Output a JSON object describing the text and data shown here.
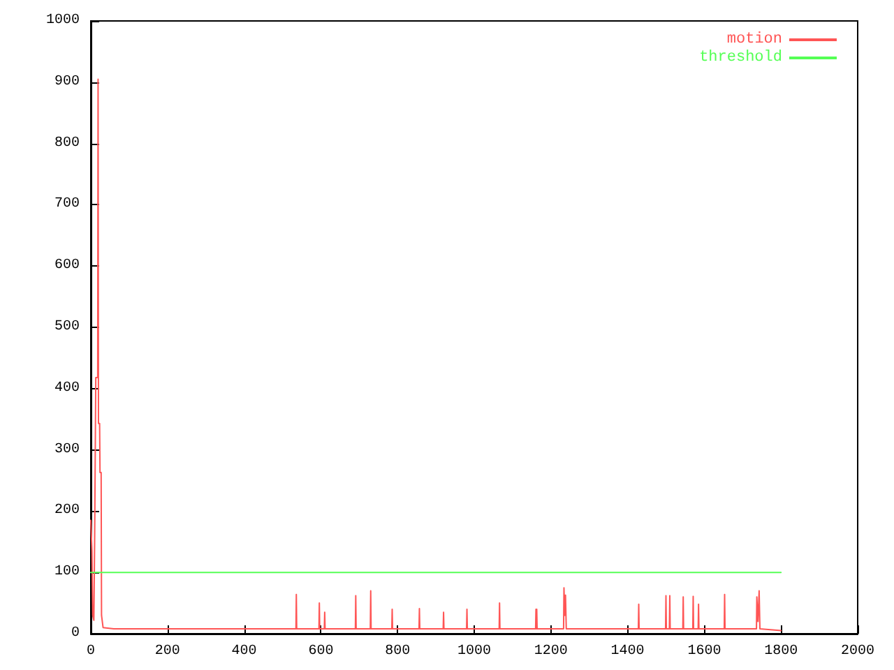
{
  "chart_data": {
    "type": "line",
    "xlim": [
      0,
      2000
    ],
    "xticks": [
      0,
      200,
      400,
      600,
      800,
      1000,
      1200,
      1400,
      1600,
      1800,
      2000
    ],
    "ylim": [
      0,
      1000
    ],
    "yticks": [
      0,
      100,
      200,
      300,
      400,
      500,
      600,
      700,
      800,
      900,
      1000
    ],
    "grid": false,
    "legend": "top right",
    "marker": "none",
    "line_style": "solid",
    "series": [
      {
        "name": "motion",
        "color": "#ff5555",
        "x": [
          0,
          3,
          5,
          8,
          10,
          13,
          18,
          19,
          20,
          23,
          24,
          27,
          28,
          32,
          60,
          100,
          200,
          300,
          400,
          500,
          535,
          536,
          537,
          595,
          596,
          597,
          609,
          610,
          611,
          690,
          691,
          692,
          729,
          730,
          731,
          785,
          786,
          787,
          856,
          857,
          858,
          919,
          920,
          921,
          980,
          981,
          982,
          1065,
          1066,
          1067,
          1160,
          1161,
          1162,
          1163,
          1164,
          1233,
          1234,
          1236,
          1238,
          1240,
          1428,
          1429,
          1430,
          1499,
          1500,
          1501,
          1509,
          1510,
          1511,
          1544,
          1545,
          1546,
          1570,
          1571,
          1572,
          1584,
          1585,
          1586,
          1652,
          1653,
          1654,
          1736,
          1737,
          1740,
          1743,
          1745,
          1800
        ],
        "values": [
          185,
          135,
          30,
          22,
          150,
          418,
          418,
          905,
          343,
          343,
          263,
          263,
          30,
          10,
          8,
          8,
          8,
          8,
          8,
          8,
          8,
          64,
          8,
          8,
          50,
          8,
          8,
          35,
          8,
          8,
          62,
          8,
          8,
          70,
          8,
          8,
          40,
          8,
          8,
          41,
          8,
          8,
          35,
          8,
          8,
          40,
          8,
          8,
          50,
          8,
          8,
          40,
          8,
          40,
          8,
          8,
          75,
          30,
          63,
          8,
          8,
          48,
          8,
          8,
          62,
          8,
          8,
          62,
          8,
          8,
          60,
          8,
          8,
          61,
          8,
          8,
          48,
          8,
          8,
          64,
          8,
          8,
          60,
          20,
          70,
          8,
          5
        ]
      },
      {
        "name": "threshold",
        "color": "#55ff55",
        "x": [
          0,
          1800
        ],
        "values": [
          100,
          100
        ]
      }
    ]
  }
}
